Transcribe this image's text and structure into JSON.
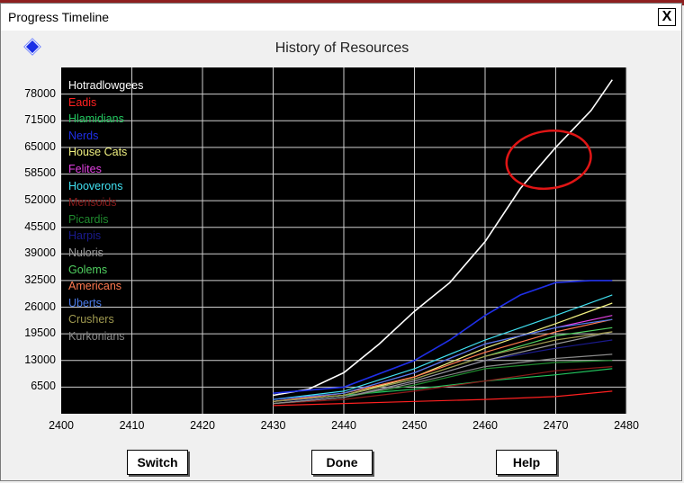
{
  "window": {
    "title": "Progress Timeline",
    "close_label": "X"
  },
  "icons": {
    "diamond": "blue-diamond-icon",
    "close": "close-icon"
  },
  "chart_data": {
    "type": "line",
    "title": "History of Resources",
    "xlabel": "",
    "ylabel": "",
    "xlim": [
      2400,
      2480
    ],
    "ylim": [
      0,
      84500
    ],
    "x_ticks": [
      2400,
      2410,
      2420,
      2430,
      2440,
      2450,
      2460,
      2470,
      2480
    ],
    "y_ticks": [
      6500,
      13000,
      19500,
      26000,
      32500,
      39000,
      45500,
      52000,
      58500,
      65000,
      71500,
      78000
    ],
    "grid": true,
    "legend_position": "top-left",
    "background": "#000000",
    "annotation": {
      "type": "hand-drawn circle",
      "color": "#e01515",
      "around_x": [
        2463,
        2475
      ],
      "around_y": [
        55000,
        69000
      ]
    },
    "series": [
      {
        "name": "Hotradlowgees",
        "color": "#ffffff",
        "points": [
          [
            2430,
            4500
          ],
          [
            2435,
            6000
          ],
          [
            2440,
            10000
          ],
          [
            2445,
            17000
          ],
          [
            2450,
            25000
          ],
          [
            2455,
            32000
          ],
          [
            2460,
            42000
          ],
          [
            2465,
            55000
          ],
          [
            2470,
            65000
          ],
          [
            2475,
            74000
          ],
          [
            2478,
            81500
          ]
        ]
      },
      {
        "name": "Eadis",
        "color": "#ff2020",
        "points": [
          [
            2430,
            2000
          ],
          [
            2440,
            2500
          ],
          [
            2450,
            3000
          ],
          [
            2460,
            3500
          ],
          [
            2470,
            4200
          ],
          [
            2478,
            5500
          ]
        ]
      },
      {
        "name": "Hlamidians",
        "color": "#22c55e",
        "points": [
          [
            2430,
            3000
          ],
          [
            2440,
            4500
          ],
          [
            2450,
            6000
          ],
          [
            2460,
            8000
          ],
          [
            2470,
            9500
          ],
          [
            2478,
            11000
          ]
        ]
      },
      {
        "name": "Nerds",
        "color": "#1f2fe8",
        "points": [
          [
            2430,
            5000
          ],
          [
            2440,
            6500
          ],
          [
            2450,
            13000
          ],
          [
            2455,
            18000
          ],
          [
            2460,
            24000
          ],
          [
            2465,
            29000
          ],
          [
            2470,
            32000
          ],
          [
            2475,
            32500
          ],
          [
            2478,
            32500
          ]
        ]
      },
      {
        "name": "House Cats",
        "color": "#f0f080",
        "points": [
          [
            2430,
            3000
          ],
          [
            2440,
            4500
          ],
          [
            2450,
            9000
          ],
          [
            2460,
            16000
          ],
          [
            2470,
            22000
          ],
          [
            2478,
            27000
          ]
        ]
      },
      {
        "name": "Felites",
        "color": "#e040e0",
        "points": [
          [
            2430,
            3000
          ],
          [
            2440,
            5000
          ],
          [
            2450,
            10000
          ],
          [
            2460,
            17000
          ],
          [
            2470,
            21000
          ],
          [
            2478,
            24000
          ]
        ]
      },
      {
        "name": "Hooverons",
        "color": "#40e0f0",
        "points": [
          [
            2430,
            3500
          ],
          [
            2440,
            5500
          ],
          [
            2450,
            11000
          ],
          [
            2460,
            18000
          ],
          [
            2470,
            24000
          ],
          [
            2478,
            29000
          ]
        ]
      },
      {
        "name": "Mensoids",
        "color": "#8b1a1a",
        "points": [
          [
            2430,
            2500
          ],
          [
            2440,
            3500
          ],
          [
            2450,
            5500
          ],
          [
            2460,
            8000
          ],
          [
            2470,
            10500
          ],
          [
            2478,
            11500
          ]
        ]
      },
      {
        "name": "Picardis",
        "color": "#1f8a2e",
        "points": [
          [
            2430,
            2500
          ],
          [
            2440,
            4000
          ],
          [
            2450,
            7000
          ],
          [
            2460,
            11000
          ],
          [
            2470,
            12500
          ],
          [
            2478,
            13000
          ]
        ]
      },
      {
        "name": "Harpis",
        "color": "#1a1a8c",
        "points": [
          [
            2430,
            3000
          ],
          [
            2440,
            4000
          ],
          [
            2450,
            8000
          ],
          [
            2460,
            13000
          ],
          [
            2470,
            16000
          ],
          [
            2478,
            18000
          ]
        ]
      },
      {
        "name": "Nuloris",
        "color": "#9a9a9a",
        "points": [
          [
            2430,
            2500
          ],
          [
            2440,
            4000
          ],
          [
            2450,
            8000
          ],
          [
            2460,
            13000
          ],
          [
            2470,
            17000
          ],
          [
            2478,
            20000
          ]
        ]
      },
      {
        "name": "Golems",
        "color": "#50d060",
        "points": [
          [
            2430,
            3000
          ],
          [
            2440,
            4500
          ],
          [
            2450,
            8500
          ],
          [
            2460,
            14000
          ],
          [
            2470,
            19000
          ],
          [
            2478,
            21000
          ]
        ]
      },
      {
        "name": "Americans",
        "color": "#ff7a50",
        "points": [
          [
            2430,
            3000
          ],
          [
            2440,
            5000
          ],
          [
            2450,
            9000
          ],
          [
            2460,
            15000
          ],
          [
            2470,
            20000
          ],
          [
            2478,
            23000
          ]
        ]
      },
      {
        "name": "Uberts",
        "color": "#4a7ae8",
        "points": [
          [
            2430,
            3500
          ],
          [
            2440,
            5000
          ],
          [
            2450,
            10000
          ],
          [
            2460,
            17000
          ],
          [
            2470,
            21000
          ],
          [
            2478,
            23000
          ]
        ]
      },
      {
        "name": "Crushers",
        "color": "#a09a50",
        "points": [
          [
            2430,
            3000
          ],
          [
            2440,
            4500
          ],
          [
            2450,
            8500
          ],
          [
            2460,
            14000
          ],
          [
            2470,
            18000
          ],
          [
            2478,
            20000
          ]
        ]
      },
      {
        "name": "Kurkonians",
        "color": "#8a8a8a",
        "points": [
          [
            2430,
            2500
          ],
          [
            2440,
            4000
          ],
          [
            2450,
            7500
          ],
          [
            2460,
            11500
          ],
          [
            2470,
            13500
          ],
          [
            2478,
            14500
          ]
        ]
      }
    ]
  },
  "buttons": {
    "switch": "Switch",
    "done": "Done",
    "help": "Help"
  }
}
